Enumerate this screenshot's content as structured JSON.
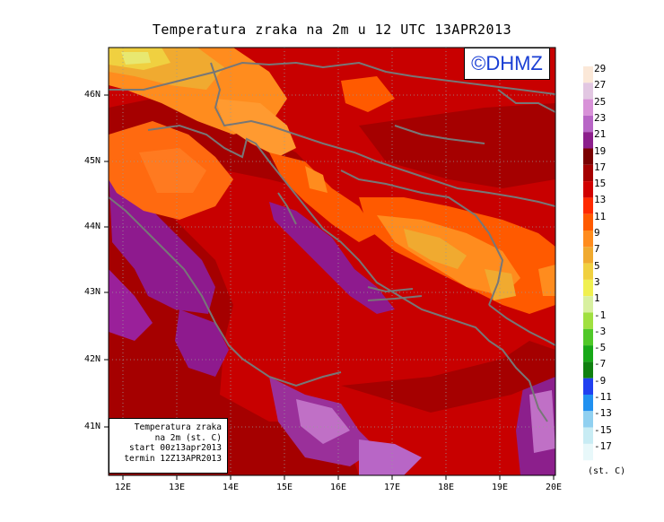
{
  "title": "Temperatura zraka na 2m u 12 UTC 13APR2013",
  "logo_text": "©DHMZ",
  "info_box": {
    "line1": "Temperatura zraka",
    "line2": "na 2m (st. C)",
    "line3": "start 00z13apr2013",
    "line4": "termin 12Z13APR2013"
  },
  "lat_labels": [
    "46N",
    "45N",
    "44N",
    "43N",
    "42N",
    "41N"
  ],
  "lon_labels": [
    "12E",
    "13E",
    "14E",
    "15E",
    "16E",
    "17E",
    "18E",
    "19E",
    "20E"
  ],
  "colorbar": {
    "labels": [
      "29",
      "27",
      "25",
      "23",
      "21",
      "19",
      "17",
      "15",
      "13",
      "11",
      "9",
      "7",
      "5",
      "3",
      "1",
      "-1",
      "-3",
      "-5",
      "-7",
      "-9",
      "-11",
      "-13",
      "-15",
      "-17"
    ],
    "unit": "(st. C)",
    "colors": [
      "#fbe8d8",
      "#e2c7e2",
      "#d892d8",
      "#b866c6",
      "#8c1f8c",
      "#7a0000",
      "#a50000",
      "#d10000",
      "#ff2a00",
      "#ff5a00",
      "#ff8c1e",
      "#f0aa30",
      "#f0d040",
      "#f0f050",
      "#d8f0a0",
      "#a0e040",
      "#50c828",
      "#18a818",
      "#108010",
      "#2040f0",
      "#2090f0",
      "#90d0f0",
      "#c8ecf4",
      "#e8f8fa"
    ]
  }
}
